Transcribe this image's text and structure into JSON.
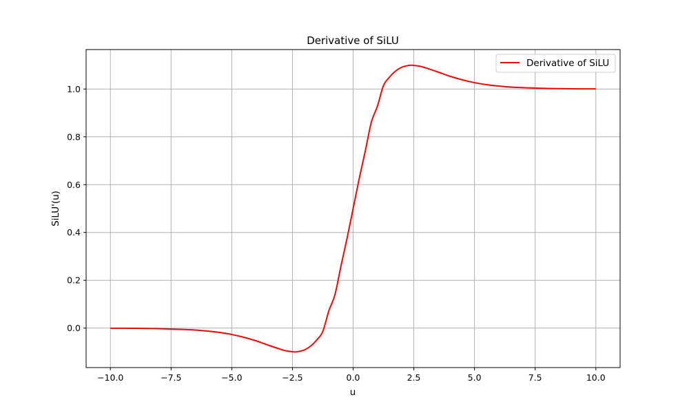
{
  "chart_data": {
    "type": "line",
    "title": "Derivative of SiLU",
    "xlabel": "u",
    "ylabel": "SiLU'(u)",
    "xlim": [
      -11.0,
      11.0
    ],
    "ylim": [
      -0.165,
      1.165
    ],
    "x_ticks": [
      -10.0,
      -7.5,
      -5.0,
      -2.5,
      0.0,
      2.5,
      5.0,
      7.5,
      10.0
    ],
    "x_tick_labels": [
      "−10.0",
      "−7.5",
      "−5.0",
      "−2.5",
      "0.0",
      "2.5",
      "5.0",
      "7.5",
      "10.0"
    ],
    "y_ticks": [
      0.0,
      0.2,
      0.4,
      0.6,
      0.8,
      1.0
    ],
    "y_tick_labels": [
      "0.0",
      "0.2",
      "0.4",
      "0.6",
      "0.8",
      "1.0"
    ],
    "grid": true,
    "legend_position": "top-right",
    "series": [
      {
        "name": "Derivative of SiLU",
        "color": "#ff0000",
        "x": [
          -10.0,
          -9.0,
          -8.0,
          -7.0,
          -6.5,
          -6.0,
          -5.5,
          -5.0,
          -4.5,
          -4.0,
          -3.5,
          -3.0,
          -2.75,
          -2.5,
          -2.4,
          -2.25,
          -2.0,
          -1.75,
          -1.5,
          -1.25,
          -1.0,
          -0.75,
          -0.5,
          -0.25,
          0.0,
          0.25,
          0.5,
          0.75,
          1.0,
          1.25,
          1.5,
          1.75,
          2.0,
          2.25,
          2.4,
          2.5,
          2.75,
          3.0,
          3.5,
          4.0,
          4.5,
          5.0,
          5.5,
          6.0,
          6.5,
          7.0,
          8.0,
          9.0,
          10.0
        ],
        "y": [
          -0.0004,
          -0.001,
          -0.0024,
          -0.0055,
          -0.008,
          -0.0123,
          -0.0182,
          -0.0266,
          -0.0383,
          -0.0531,
          -0.0711,
          -0.0881,
          -0.0951,
          -0.0986,
          -0.0998,
          -0.0979,
          -0.0908,
          -0.0751,
          -0.0498,
          -0.0141,
          0.0723,
          0.1393,
          0.26,
          0.3754,
          0.5,
          0.6246,
          0.74,
          0.8607,
          0.9277,
          1.0141,
          1.0498,
          1.0751,
          1.0908,
          1.0979,
          1.0998,
          1.0986,
          1.0951,
          1.0881,
          1.0711,
          1.0531,
          1.0383,
          1.0266,
          1.0182,
          1.0123,
          1.008,
          1.0055,
          1.0024,
          1.001,
          1.0004
        ]
      }
    ]
  }
}
